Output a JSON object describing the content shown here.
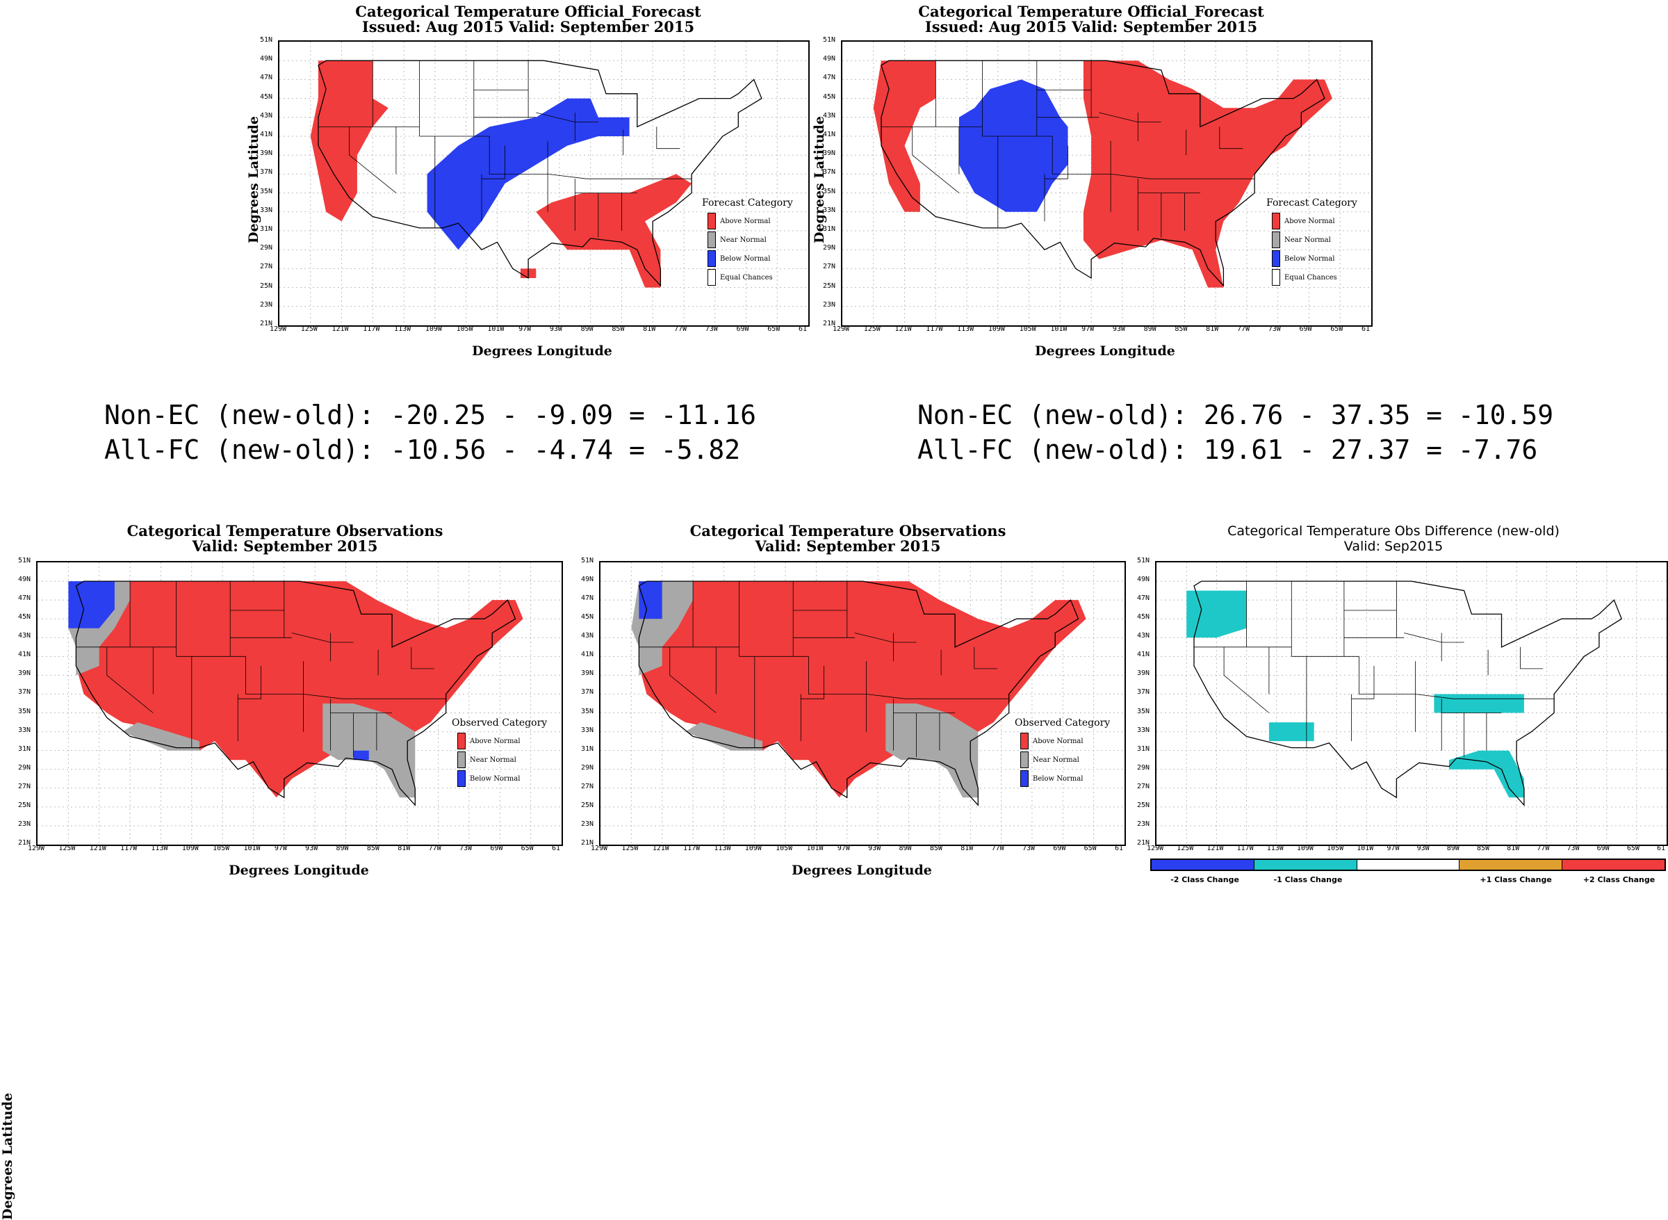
{
  "colors": {
    "above": "#f03c3c",
    "near": "#a8a8a8",
    "below": "#2a3ff0",
    "equal": "#ffffff",
    "diff_m1": "#1fc8c8"
  },
  "lat_ticks": [
    "51N",
    "49N",
    "47N",
    "45N",
    "43N",
    "41N",
    "39N",
    "37N",
    "35N",
    "33N",
    "31N",
    "29N",
    "27N",
    "25N",
    "23N",
    "21N"
  ],
  "lon_ticks": [
    "129W",
    "125W",
    "121W",
    "117W",
    "113W",
    "109W",
    "105W",
    "101W",
    "97W",
    "93W",
    "89W",
    "85W",
    "81W",
    "77W",
    "73W",
    "69W",
    "65W",
    "61"
  ],
  "axis": {
    "xlabel": "Degrees Longitude",
    "ylabel": "Degrees Latitude"
  },
  "forecast_legend": {
    "title": "Forecast Category",
    "items": [
      "Above Normal",
      "Near Normal",
      "Below Normal",
      "Equal Chances"
    ]
  },
  "observed_legend": {
    "title": "Observed Category",
    "items": [
      "Above Normal",
      "Near Normal",
      "Below Normal"
    ]
  },
  "panels": {
    "fc_old": {
      "title1": "Categorical Temperature Official_Forecast",
      "title2": "Issued: Aug 2015 Valid: September 2015"
    },
    "fc_new": {
      "title1": "Categorical Temperature Official_Forecast",
      "title2": "Issued: Aug 2015 Valid: September 2015"
    },
    "obs_old": {
      "title1": "Categorical Temperature Observations",
      "title2": "Valid: September 2015"
    },
    "obs_new": {
      "title1": "Categorical Temperature Observations",
      "title2": "Valid: September 2015"
    },
    "diff": {
      "title1": "Categorical Temperature Obs Difference (new-old)",
      "title2": "Valid: Sep2015"
    }
  },
  "stats": {
    "left_line1": "Non-EC (new-old): -20.25 - -9.09 = -11.16",
    "left_line2": "All-FC (new-old): -10.56 - -4.74 = -5.82",
    "right_line1": "Non-EC (new-old): 26.76 - 37.35 = -10.59",
    "right_line2": "All-FC (new-old): 19.61 - 27.37 = -7.76"
  },
  "diff_colorbar": {
    "colors": [
      "#2a3ff0",
      "#1fc8c8",
      "#ffffff",
      "#e0a030",
      "#f03c3c"
    ],
    "labels": [
      "-2 Class Change",
      "-1 Class Change",
      "+1 Class Change",
      "+2 Class Change"
    ]
  }
}
